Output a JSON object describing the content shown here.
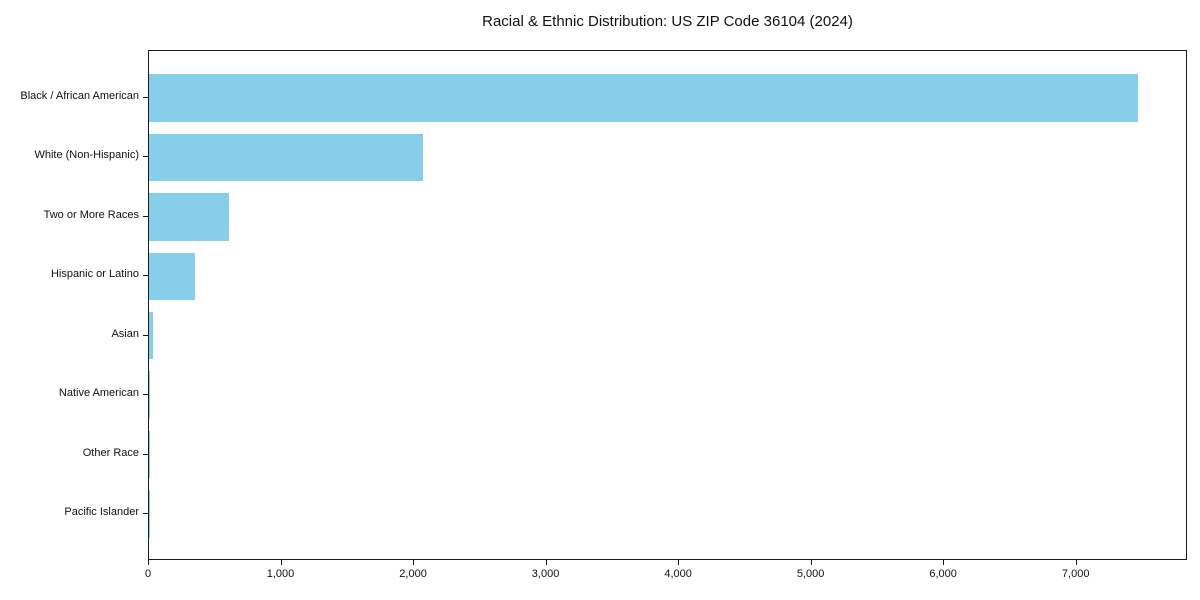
{
  "chart_data": {
    "type": "bar",
    "orientation": "horizontal",
    "title": "Racial & Ethnic Distribution: US ZIP Code 36104 (2024)",
    "xlabel": "",
    "ylabel": "",
    "categories": [
      "Black / African American",
      "White (Non-Hispanic)",
      "Two or More Races",
      "Hispanic or Latino",
      "Asian",
      "Native American",
      "Other Race",
      "Pacific Islander"
    ],
    "values": [
      7460,
      2070,
      600,
      350,
      30,
      8,
      5,
      2
    ],
    "xlim": [
      0,
      7840
    ],
    "x_ticks": [
      0,
      1000,
      2000,
      3000,
      4000,
      5000,
      6000,
      7000
    ],
    "x_tick_labels": [
      "0",
      "1,000",
      "2,000",
      "3,000",
      "4,000",
      "5,000",
      "6,000",
      "7,000"
    ],
    "bar_color": "#87CEEB",
    "background_color": "#ffffff",
    "spine_color": "#1a1a1a",
    "grid": false,
    "legend": "none"
  }
}
